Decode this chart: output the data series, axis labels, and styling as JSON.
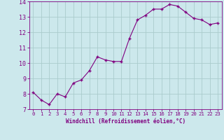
{
  "xlabel": "Windchill (Refroidissement éolien,°C)",
  "x": [
    0,
    1,
    2,
    3,
    4,
    5,
    6,
    7,
    8,
    9,
    10,
    11,
    12,
    13,
    14,
    15,
    16,
    17,
    18,
    19,
    20,
    21,
    22,
    23
  ],
  "y": [
    8.1,
    7.6,
    7.3,
    8.0,
    7.8,
    8.7,
    8.9,
    9.5,
    10.4,
    10.2,
    10.1,
    10.1,
    11.6,
    12.8,
    13.1,
    13.5,
    13.5,
    13.8,
    13.7,
    13.3,
    12.9,
    12.8,
    12.5,
    12.6
  ],
  "line_color": "#800080",
  "bg_color": "#cce8ec",
  "grid_color": "#aacccc",
  "ylim": [
    7,
    14
  ],
  "yticks": [
    7,
    8,
    9,
    10,
    11,
    12,
    13,
    14
  ],
  "xticks": [
    0,
    1,
    2,
    3,
    4,
    5,
    6,
    7,
    8,
    9,
    10,
    11,
    12,
    13,
    14,
    15,
    16,
    17,
    18,
    19,
    20,
    21,
    22,
    23
  ],
  "xlabel_fontsize": 5.5,
  "ytick_fontsize": 6.0,
  "xtick_fontsize": 5.2
}
